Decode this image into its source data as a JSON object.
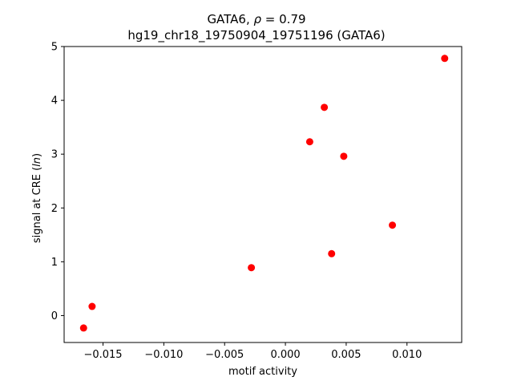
{
  "chart_data": {
    "type": "scatter",
    "title_line1_main": "GATA6, ",
    "title_line1_rho": "ρ",
    "title_line1_eq": " = 0.79",
    "title_line2": "hg19_chr18_19750904_19751196 (GATA6)",
    "xlabel": "motif activity",
    "ylabel_prefix": "signal at CRE (",
    "ylabel_italic": "ln",
    "ylabel_suffix": ")",
    "xlim": [
      -0.0182,
      0.0145
    ],
    "ylim": [
      -0.5,
      5.0
    ],
    "xticks": [
      -0.015,
      -0.01,
      -0.005,
      0.0,
      0.005,
      0.01
    ],
    "xtick_labels": [
      "−0.015",
      "−0.010",
      "−0.005",
      "0.000",
      "0.005",
      "0.010"
    ],
    "yticks": [
      0,
      1,
      2,
      3,
      4,
      5
    ],
    "ytick_labels": [
      "0",
      "1",
      "2",
      "3",
      "4",
      "5"
    ],
    "marker_color": "#ff0000",
    "points": [
      {
        "x": -0.0166,
        "y": -0.23
      },
      {
        "x": -0.0159,
        "y": 0.17
      },
      {
        "x": -0.0028,
        "y": 0.89
      },
      {
        "x": 0.002,
        "y": 3.23
      },
      {
        "x": 0.0032,
        "y": 3.87
      },
      {
        "x": 0.0038,
        "y": 1.15
      },
      {
        "x": 0.0048,
        "y": 2.96
      },
      {
        "x": 0.0088,
        "y": 1.68
      },
      {
        "x": 0.0131,
        "y": 4.78
      }
    ]
  }
}
